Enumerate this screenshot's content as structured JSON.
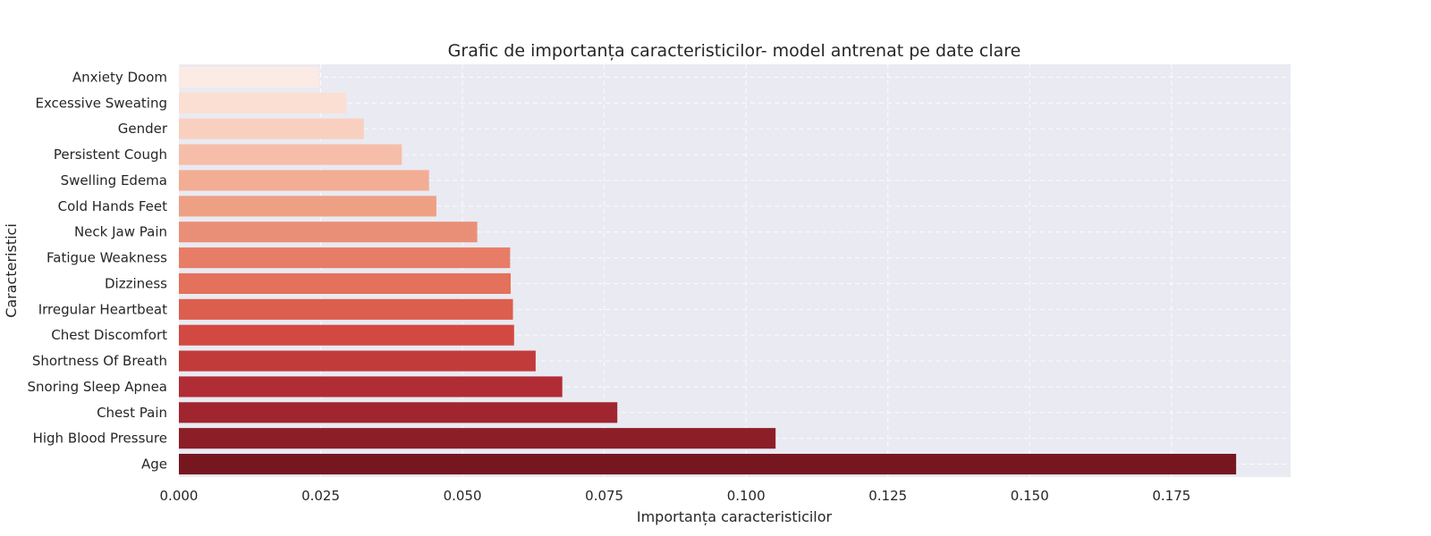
{
  "chart_data": {
    "type": "bar",
    "orientation": "horizontal",
    "title": "Grafic de importanța caracteristicilor- model antrenat pe date clare",
    "xlabel": "Importanța caracteristicilor",
    "ylabel": "Caracteristici",
    "xlim": [
      0,
      0.196
    ],
    "xticks": [
      "0.000",
      "0.025",
      "0.050",
      "0.075",
      "0.100",
      "0.125",
      "0.150",
      "0.175"
    ],
    "grid": true,
    "palette": "Reds",
    "categories": [
      "Anxiety Doom",
      "Excessive Sweating",
      "Gender",
      "Persistent Cough",
      "Swelling Edema",
      "Cold Hands Feet",
      "Neck Jaw Pain",
      "Fatigue Weakness",
      "Dizziness",
      "Irregular Heartbeat",
      "Chest Discomfort",
      "Shortness Of Breath",
      "Snoring Sleep Apnea",
      "Chest Pain",
      "High Blood Pressure",
      "Age"
    ],
    "values": [
      0.0247,
      0.0295,
      0.0326,
      0.0393,
      0.0441,
      0.0454,
      0.0526,
      0.0584,
      0.0585,
      0.0589,
      0.0591,
      0.0629,
      0.0676,
      0.0773,
      0.1052,
      0.1864
    ],
    "colors": [
      "#fcebe4",
      "#fcdfd3",
      "#f9d0c0",
      "#f6bea9",
      "#f2ad94",
      "#eea084",
      "#ea8f77",
      "#e77d67",
      "#e4715b",
      "#dc5e4e",
      "#d24942",
      "#c23b3b",
      "#b12c34",
      "#a0252e",
      "#8c1e27",
      "#761720"
    ]
  }
}
